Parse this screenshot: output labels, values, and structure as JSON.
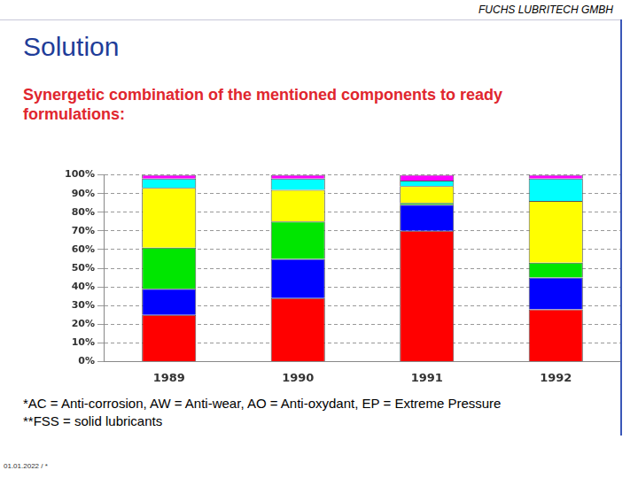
{
  "slide": {
    "company": "FUCHS LUBRITECH GMBH",
    "title": "Solution",
    "subtitle": "Synergetic combination of the mentioned components to ready formulations:",
    "footnotes": [
      "*AC = Anti-corrosion, AW = Anti-wear, AO = Anti-oxydant, EP = Extreme Pressure",
      "**FSS = solid lubricants"
    ],
    "date": "01.01.2022 / *"
  },
  "chart_data": {
    "type": "bar",
    "stacked": true,
    "grid": true,
    "categories": [
      "1989",
      "1990",
      "1991",
      "1992"
    ],
    "series": [
      {
        "color": "#ff0000",
        "values": [
          25,
          34,
          70,
          28
        ]
      },
      {
        "color": "#0000ff",
        "values": [
          14,
          21,
          14,
          17
        ]
      },
      {
        "color": "#00e600",
        "values": [
          22,
          20,
          1,
          8
        ]
      },
      {
        "color": "#ffff00",
        "values": [
          32,
          17,
          9,
          33
        ]
      },
      {
        "color": "#00ffff",
        "values": [
          5,
          6,
          3,
          12
        ]
      },
      {
        "color": "#ff00ff",
        "values": [
          2,
          2,
          3,
          2
        ]
      }
    ],
    "ylim": [
      0,
      100
    ],
    "yticks": [
      {
        "value": 0,
        "label": "0%"
      },
      {
        "value": 10,
        "label": "10%"
      },
      {
        "value": 20,
        "label": "20%"
      },
      {
        "value": 30,
        "label": "30%"
      },
      {
        "value": 40,
        "label": "40%"
      },
      {
        "value": 50,
        "label": "50%"
      },
      {
        "value": 60,
        "label": "60%"
      },
      {
        "value": 70,
        "label": "70%"
      },
      {
        "value": 80,
        "label": "80%"
      },
      {
        "value": 90,
        "label": "90%"
      },
      {
        "value": 100,
        "label": "100%"
      }
    ]
  }
}
